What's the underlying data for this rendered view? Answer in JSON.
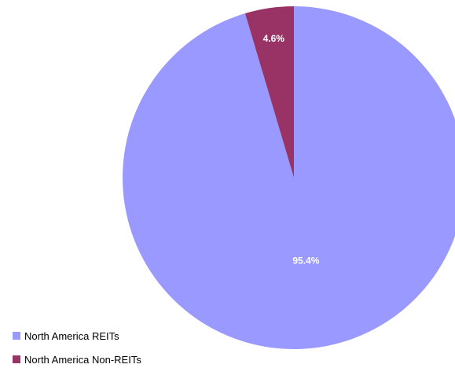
{
  "chart_data": {
    "type": "pie",
    "slices": [
      {
        "label": "North America REITs",
        "value": 95.4,
        "value_label": "95.4%",
        "color": "#9999ff"
      },
      {
        "label": "North America Non-REITs",
        "value": 4.6,
        "value_label": "4.6%",
        "color": "#993366"
      }
    ],
    "start_angle_deg": 0,
    "direction": "clockwise",
    "legend_position": "bottom-left",
    "legend": [
      "North America REITs",
      "North America Non-REITs"
    ]
  }
}
